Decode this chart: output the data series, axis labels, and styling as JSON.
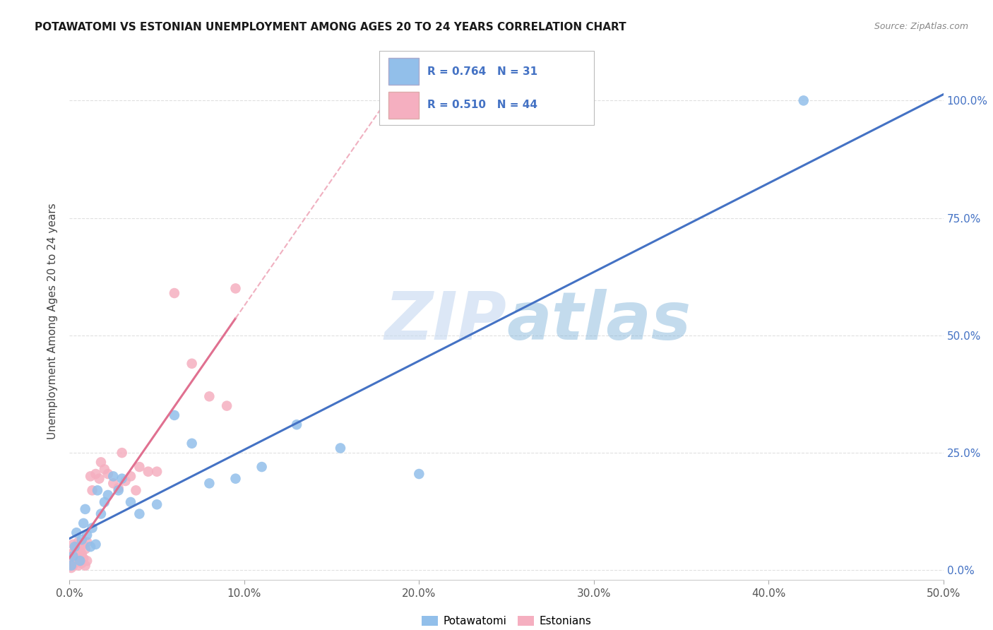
{
  "title": "POTAWATOMI VS ESTONIAN UNEMPLOYMENT AMONG AGES 20 TO 24 YEARS CORRELATION CHART",
  "source": "Source: ZipAtlas.com",
  "ylabel": "Unemployment Among Ages 20 to 24 years",
  "xlim": [
    0.0,
    0.5
  ],
  "ylim": [
    -0.02,
    1.08
  ],
  "xticks": [
    0.0,
    0.1,
    0.2,
    0.3,
    0.4,
    0.5
  ],
  "yticks": [
    0.0,
    0.25,
    0.5,
    0.75,
    1.0
  ],
  "xticklabels": [
    "0.0%",
    "10.0%",
    "20.0%",
    "30.0%",
    "40.0%",
    "50.0%"
  ],
  "yticklabels_right": [
    "0.0%",
    "25.0%",
    "50.0%",
    "75.0%",
    "100.0%"
  ],
  "potawatomi_color": "#92bfea",
  "estonian_color": "#f5afc0",
  "potawatomi_line_color": "#4472c4",
  "estonian_line_color": "#e07090",
  "estonian_dash_color": "#f0b0c0",
  "legend_R_potawatomi": "0.764",
  "legend_N_potawatomi": "31",
  "legend_R_estonian": "0.510",
  "legend_N_estonian": "44",
  "watermark_zip": "ZIP",
  "watermark_atlas": "atlas",
  "potawatomi_x": [
    0.001,
    0.002,
    0.003,
    0.004,
    0.006,
    0.007,
    0.008,
    0.009,
    0.01,
    0.012,
    0.013,
    0.015,
    0.016,
    0.018,
    0.02,
    0.022,
    0.025,
    0.028,
    0.03,
    0.035,
    0.04,
    0.05,
    0.06,
    0.07,
    0.08,
    0.095,
    0.11,
    0.13,
    0.155,
    0.2,
    0.42
  ],
  "potawatomi_y": [
    0.01,
    0.03,
    0.05,
    0.08,
    0.02,
    0.065,
    0.1,
    0.13,
    0.075,
    0.05,
    0.09,
    0.055,
    0.17,
    0.12,
    0.145,
    0.16,
    0.2,
    0.17,
    0.195,
    0.145,
    0.12,
    0.14,
    0.33,
    0.27,
    0.185,
    0.195,
    0.22,
    0.31,
    0.26,
    0.205,
    1.0
  ],
  "estonian_x": [
    0.001,
    0.001,
    0.001,
    0.002,
    0.002,
    0.002,
    0.003,
    0.003,
    0.004,
    0.004,
    0.005,
    0.005,
    0.005,
    0.006,
    0.006,
    0.007,
    0.007,
    0.008,
    0.008,
    0.009,
    0.009,
    0.01,
    0.01,
    0.012,
    0.013,
    0.015,
    0.017,
    0.018,
    0.02,
    0.022,
    0.025,
    0.028,
    0.03,
    0.032,
    0.035,
    0.038,
    0.04,
    0.045,
    0.05,
    0.06,
    0.07,
    0.08,
    0.09,
    0.095
  ],
  "estonian_y": [
    0.005,
    0.02,
    0.035,
    0.01,
    0.025,
    0.055,
    0.015,
    0.04,
    0.02,
    0.05,
    0.01,
    0.03,
    0.06,
    0.02,
    0.04,
    0.015,
    0.035,
    0.025,
    0.055,
    0.01,
    0.045,
    0.02,
    0.06,
    0.2,
    0.17,
    0.205,
    0.195,
    0.23,
    0.215,
    0.205,
    0.185,
    0.175,
    0.25,
    0.19,
    0.2,
    0.17,
    0.22,
    0.21,
    0.21,
    0.59,
    0.44,
    0.37,
    0.35,
    0.6
  ]
}
